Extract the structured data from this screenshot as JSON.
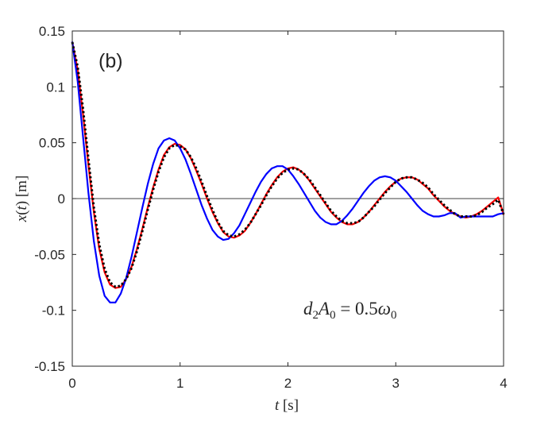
{
  "chart_data": {
    "type": "line",
    "panel_label": "(b)",
    "annotation": "d2A0 = 0.5ω0",
    "xlabel": "t [s]",
    "ylabel": "x(t) [m]",
    "xlim": [
      0,
      4
    ],
    "ylim": [
      -0.15,
      0.15
    ],
    "xticks": [
      0,
      1,
      2,
      3,
      4
    ],
    "xtick_labels": [
      "0",
      "1",
      "2",
      "3",
      "4"
    ],
    "yticks": [
      -0.15,
      -0.1,
      -0.05,
      0,
      0.05,
      0.1,
      0.15
    ],
    "ytick_labels": [
      "-0.15",
      "-0.1",
      "-0.05",
      "0",
      "0.05",
      "0.1",
      "0.15"
    ],
    "zero_line": true,
    "grid": false,
    "colors": {
      "series_1": "#ff0000",
      "series_2": "#0000ff",
      "series_3": "#000000",
      "axes": "#262626",
      "zero_line": "#000000"
    },
    "series": [
      {
        "color": "#ff0000",
        "style": "solid",
        "x": [
          0,
          0.05,
          0.1,
          0.15,
          0.2,
          0.25,
          0.3,
          0.35,
          0.4,
          0.45,
          0.5,
          0.55,
          0.6,
          0.65,
          0.7,
          0.75,
          0.8,
          0.85,
          0.9,
          0.95,
          1.0,
          1.05,
          1.1,
          1.15,
          1.2,
          1.25,
          1.3,
          1.35,
          1.4,
          1.45,
          1.5,
          1.55,
          1.6,
          1.65,
          1.7,
          1.75,
          1.8,
          1.85,
          1.9,
          1.95,
          2.0,
          2.05,
          2.1,
          2.15,
          2.2,
          2.25,
          2.3,
          2.35,
          2.4,
          2.45,
          2.5,
          2.55,
          2.6,
          2.65,
          2.7,
          2.75,
          2.8,
          2.85,
          2.9,
          2.95,
          3.0,
          3.05,
          3.1,
          3.15,
          3.2,
          3.25,
          3.3,
          3.35,
          3.4,
          3.45,
          3.5,
          3.55,
          3.6,
          3.65,
          3.7,
          3.75,
          3.8,
          3.85,
          3.9,
          3.95,
          4.0
        ],
        "y": [
          0.14,
          0.115,
          0.075,
          0.03,
          -0.012,
          -0.045,
          -0.066,
          -0.077,
          -0.08,
          -0.079,
          -0.072,
          -0.061,
          -0.045,
          -0.027,
          -0.008,
          0.01,
          0.026,
          0.039,
          0.046,
          0.049,
          0.048,
          0.044,
          0.036,
          0.025,
          0.013,
          0.0,
          -0.012,
          -0.022,
          -0.03,
          -0.034,
          -0.035,
          -0.033,
          -0.029,
          -0.022,
          -0.014,
          -0.005,
          0.004,
          0.012,
          0.019,
          0.024,
          0.027,
          0.028,
          0.026,
          0.022,
          0.016,
          0.009,
          0.002,
          -0.005,
          -0.012,
          -0.017,
          -0.021,
          -0.023,
          -0.023,
          -0.021,
          -0.017,
          -0.012,
          -0.006,
          0.0,
          0.006,
          0.011,
          0.015,
          0.018,
          0.019,
          0.019,
          0.017,
          0.013,
          0.009,
          0.003,
          -0.002,
          -0.007,
          -0.011,
          -0.014,
          -0.016,
          -0.017,
          -0.016,
          -0.014,
          -0.011,
          -0.007,
          -0.003,
          0.001,
          -0.014
        ]
      },
      {
        "color": "#0000ff",
        "style": "solid",
        "x": [
          0,
          0.05,
          0.1,
          0.15,
          0.2,
          0.25,
          0.3,
          0.35,
          0.4,
          0.45,
          0.5,
          0.55,
          0.6,
          0.65,
          0.7,
          0.75,
          0.8,
          0.85,
          0.9,
          0.95,
          1.0,
          1.05,
          1.1,
          1.15,
          1.2,
          1.25,
          1.3,
          1.35,
          1.4,
          1.45,
          1.5,
          1.55,
          1.6,
          1.65,
          1.7,
          1.75,
          1.8,
          1.85,
          1.9,
          1.95,
          2.0,
          2.05,
          2.1,
          2.15,
          2.2,
          2.25,
          2.3,
          2.35,
          2.4,
          2.45,
          2.5,
          2.55,
          2.6,
          2.65,
          2.7,
          2.75,
          2.8,
          2.85,
          2.9,
          2.95,
          3.0,
          3.05,
          3.1,
          3.15,
          3.2,
          3.25,
          3.3,
          3.35,
          3.4,
          3.45,
          3.5,
          3.55,
          3.6,
          3.65,
          3.7,
          3.75,
          3.8,
          3.85,
          3.9,
          3.95,
          4.0
        ],
        "y": [
          0.14,
          0.105,
          0.055,
          0.005,
          -0.038,
          -0.069,
          -0.087,
          -0.093,
          -0.093,
          -0.085,
          -0.071,
          -0.052,
          -0.03,
          -0.008,
          0.013,
          0.031,
          0.045,
          0.052,
          0.054,
          0.052,
          0.045,
          0.035,
          0.022,
          0.008,
          -0.006,
          -0.018,
          -0.028,
          -0.034,
          -0.037,
          -0.036,
          -0.031,
          -0.024,
          -0.014,
          -0.004,
          0.006,
          0.015,
          0.022,
          0.027,
          0.029,
          0.029,
          0.026,
          0.02,
          0.013,
          0.005,
          -0.003,
          -0.011,
          -0.017,
          -0.021,
          -0.023,
          -0.023,
          -0.02,
          -0.015,
          -0.009,
          -0.002,
          0.005,
          0.011,
          0.016,
          0.019,
          0.02,
          0.019,
          0.016,
          0.011,
          0.006,
          0.0,
          -0.006,
          -0.011,
          -0.014,
          -0.016,
          -0.016,
          -0.015,
          -0.013,
          -0.013,
          -0.017,
          -0.016,
          -0.016,
          -0.016,
          -0.016,
          -0.016,
          -0.016,
          -0.014,
          -0.013
        ]
      },
      {
        "color": "#000000",
        "style": "dotted",
        "x": [
          0,
          0.05,
          0.1,
          0.15,
          0.2,
          0.25,
          0.3,
          0.35,
          0.4,
          0.45,
          0.5,
          0.55,
          0.6,
          0.65,
          0.7,
          0.75,
          0.8,
          0.85,
          0.9,
          0.95,
          1.0,
          1.05,
          1.1,
          1.15,
          1.2,
          1.25,
          1.3,
          1.35,
          1.4,
          1.45,
          1.5,
          1.55,
          1.6,
          1.65,
          1.7,
          1.75,
          1.8,
          1.85,
          1.9,
          1.95,
          2.0,
          2.05,
          2.1,
          2.15,
          2.2,
          2.25,
          2.3,
          2.35,
          2.4,
          2.45,
          2.5,
          2.55,
          2.6,
          2.65,
          2.7,
          2.75,
          2.8,
          2.85,
          2.9,
          2.95,
          3.0,
          3.05,
          3.1,
          3.15,
          3.2,
          3.25,
          3.3,
          3.35,
          3.4,
          3.45,
          3.5,
          3.55,
          3.6,
          3.65,
          3.7,
          3.75,
          3.8,
          3.85,
          3.9,
          3.95,
          4.0
        ],
        "y": [
          0.14,
          0.118,
          0.08,
          0.035,
          -0.008,
          -0.041,
          -0.063,
          -0.075,
          -0.079,
          -0.078,
          -0.072,
          -0.062,
          -0.047,
          -0.029,
          -0.01,
          0.008,
          0.024,
          0.037,
          0.045,
          0.048,
          0.047,
          0.044,
          0.037,
          0.027,
          0.015,
          0.002,
          -0.01,
          -0.021,
          -0.029,
          -0.033,
          -0.034,
          -0.032,
          -0.028,
          -0.022,
          -0.014,
          -0.006,
          0.003,
          0.011,
          0.018,
          0.023,
          0.026,
          0.027,
          0.026,
          0.022,
          0.017,
          0.01,
          0.003,
          -0.004,
          -0.011,
          -0.016,
          -0.02,
          -0.022,
          -0.022,
          -0.021,
          -0.017,
          -0.012,
          -0.007,
          -0.001,
          0.005,
          0.01,
          0.015,
          0.018,
          0.019,
          0.019,
          0.017,
          0.014,
          0.01,
          0.004,
          -0.001,
          -0.006,
          -0.01,
          -0.014,
          -0.016,
          -0.016,
          -0.016,
          -0.015,
          -0.012,
          -0.008,
          -0.005,
          -0.001,
          -0.014
        ]
      }
    ]
  }
}
